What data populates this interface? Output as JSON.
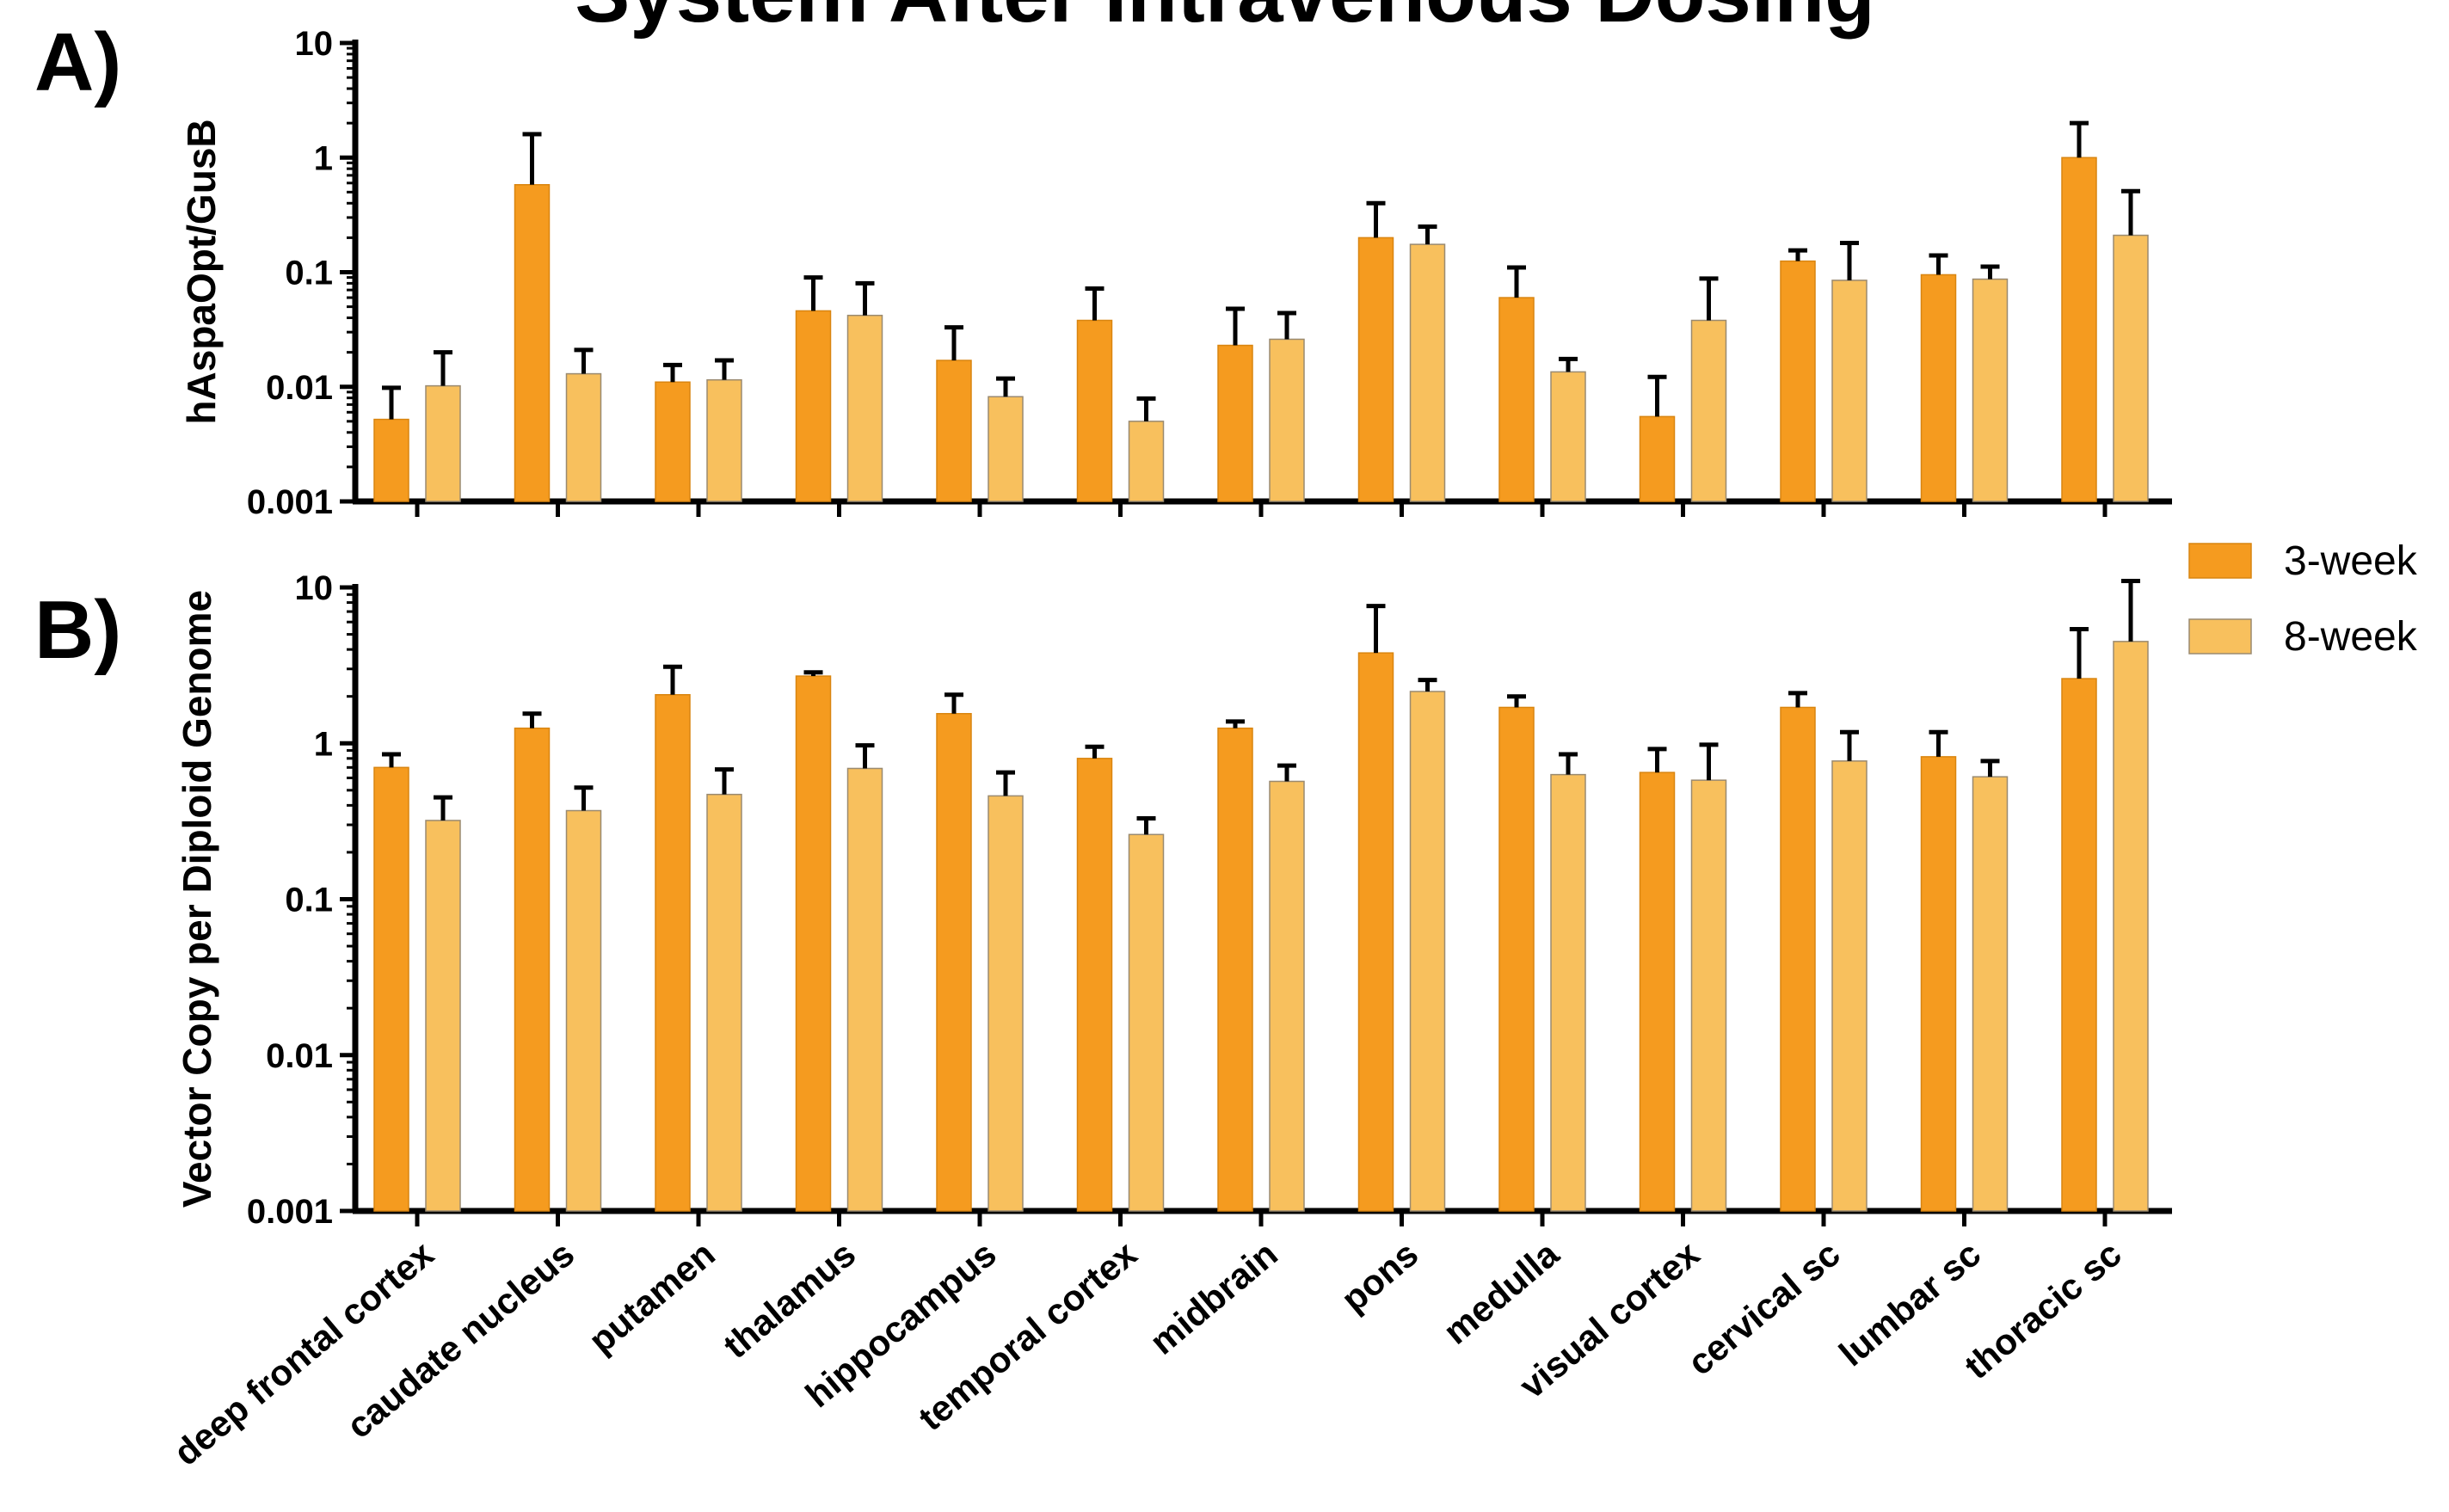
{
  "chart_data": [
    {
      "type": "bar",
      "panel_label": "A)",
      "title": "System After Intravenous Dosing",
      "ylabel": "hAspaOpt/GusB",
      "yscale": "log",
      "ylim": [
        0.001,
        10
      ],
      "yticks": [
        "0.001",
        "0.01",
        "0.1",
        "1",
        "10"
      ],
      "categories": [
        "deep frontal cortex",
        "caudate nucleus",
        "putamen",
        "thalamus",
        "hippocampus",
        "temporal cortex",
        "midbrain",
        "pons",
        "medulla",
        "visual cortex",
        "cervical sc",
        "lumbar sc",
        "thoracic sc"
      ],
      "series": [
        {
          "name": "3-week",
          "values": [
            0.0052,
            0.58,
            0.011,
            0.046,
            0.017,
            0.038,
            0.023,
            0.2,
            0.06,
            0.0055,
            0.125,
            0.095,
            1.0
          ],
          "errors": [
            0.0098,
            1.6,
            0.0155,
            0.09,
            0.033,
            0.072,
            0.048,
            0.4,
            0.11,
            0.0122,
            0.155,
            0.14,
            2.0
          ]
        },
        {
          "name": "8-week",
          "values": [
            0.0102,
            0.013,
            0.0115,
            0.042,
            0.0082,
            0.005,
            0.026,
            0.175,
            0.0135,
            0.038,
            0.085,
            0.087,
            0.21
          ],
          "errors": [
            0.02,
            0.021,
            0.017,
            0.08,
            0.0118,
            0.0079,
            0.044,
            0.25,
            0.0175,
            0.088,
            0.18,
            0.112,
            0.51
          ]
        }
      ],
      "colors": [
        "#f59b1f",
        "#f8c05d"
      ],
      "grid": false
    },
    {
      "type": "bar",
      "panel_label": "B)",
      "ylabel": "Vector Copy per Diploid Genome",
      "yscale": "log",
      "ylim": [
        0.001,
        10
      ],
      "yticks": [
        "0.001",
        "0.01",
        "0.1",
        "1",
        "10"
      ],
      "categories": [
        "deep frontal cortex",
        "caudate nucleus",
        "putamen",
        "thalamus",
        "hippocampus",
        "temporal cortex",
        "midbrain",
        "pons",
        "medulla",
        "visual cortex",
        "cervical sc",
        "lumbar sc",
        "thoracic sc"
      ],
      "series": [
        {
          "name": "3-week",
          "values": [
            0.7,
            1.25,
            2.05,
            2.7,
            1.55,
            0.8,
            1.25,
            3.8,
            1.7,
            0.65,
            1.7,
            0.82,
            2.6
          ],
          "errors": [
            0.85,
            1.55,
            3.1,
            2.85,
            2.05,
            0.95,
            1.38,
            7.6,
            2.0,
            0.92,
            2.1,
            1.18,
            5.4
          ]
        },
        {
          "name": "8-week",
          "values": [
            0.32,
            0.37,
            0.47,
            0.69,
            0.46,
            0.26,
            0.57,
            2.15,
            0.63,
            0.58,
            0.77,
            0.61,
            4.5
          ],
          "errors": [
            0.45,
            0.52,
            0.68,
            0.97,
            0.65,
            0.33,
            0.72,
            2.55,
            0.85,
            0.98,
            1.18,
            0.77,
            11.0
          ]
        }
      ],
      "colors": [
        "#f59b1f",
        "#f8c05d"
      ],
      "grid": false
    }
  ],
  "legend": {
    "position": "right",
    "items": [
      {
        "label": "3-week",
        "color": "#f59b1f"
      },
      {
        "label": "8-week",
        "color": "#f8c05d"
      }
    ]
  }
}
